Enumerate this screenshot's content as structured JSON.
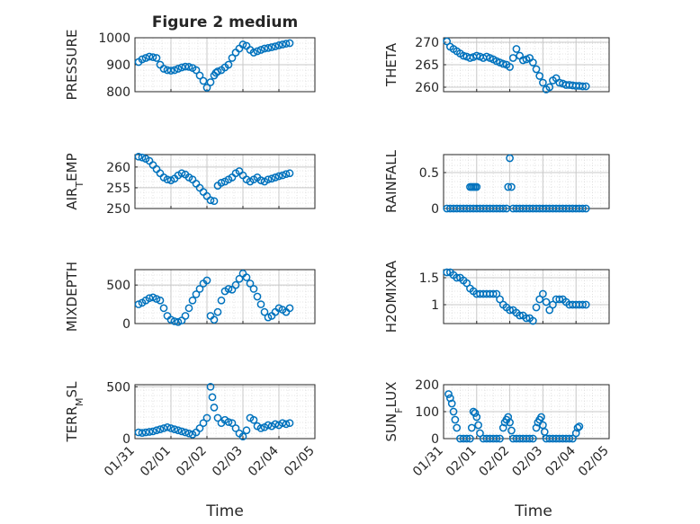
{
  "figure": {
    "title": "Figure 2 medium",
    "xlabel": "Time",
    "marker_color": "#0072bd"
  },
  "chart_data": [
    {
      "type": "scatter",
      "ylabel": "PRESSURE",
      "ylim": [
        800,
        1000
      ],
      "yticks": [
        800,
        900,
        1000
      ],
      "xticks": [
        "01/31",
        "02/01",
        "02/02",
        "02/03",
        "02/04",
        "02/05"
      ],
      "xlim": [
        0,
        5
      ],
      "grid": true,
      "series": [
        {
          "x": [
            0.1,
            0.2,
            0.3,
            0.4,
            0.5,
            0.6,
            0.7,
            0.8,
            0.9,
            1.0,
            1.1,
            1.2,
            1.3,
            1.4,
            1.5,
            1.6,
            1.7,
            1.8,
            1.9,
            2.0,
            2.1,
            2.2,
            2.25,
            2.3,
            2.4,
            2.5,
            2.6,
            2.7,
            2.8,
            2.9,
            3.0,
            3.1,
            3.2,
            3.3,
            3.4,
            3.5,
            3.6,
            3.7,
            3.8,
            3.9,
            4.0,
            4.1,
            4.2,
            4.3
          ],
          "y": [
            910,
            920,
            925,
            930,
            928,
            925,
            900,
            885,
            880,
            878,
            880,
            885,
            890,
            893,
            892,
            888,
            880,
            860,
            840,
            815,
            835,
            860,
            870,
            875,
            880,
            890,
            900,
            925,
            945,
            960,
            975,
            970,
            955,
            945,
            950,
            955,
            960,
            962,
            965,
            968,
            972,
            975,
            978,
            980
          ]
        }
      ]
    },
    {
      "type": "scatter",
      "ylabel": "THETA",
      "ylim": [
        259,
        271
      ],
      "yticks": [
        260,
        265,
        270
      ],
      "xticks": [
        "01/31",
        "02/01",
        "02/02",
        "02/03",
        "02/04",
        "02/05"
      ],
      "xlim": [
        0,
        5
      ],
      "grid": true,
      "series": [
        {
          "x": [
            0.1,
            0.2,
            0.3,
            0.4,
            0.5,
            0.6,
            0.7,
            0.8,
            0.9,
            1.0,
            1.1,
            1.2,
            1.3,
            1.4,
            1.5,
            1.6,
            1.7,
            1.8,
            1.9,
            2.0,
            2.1,
            2.2,
            2.3,
            2.4,
            2.5,
            2.6,
            2.7,
            2.8,
            2.9,
            3.0,
            3.1,
            3.2,
            3.3,
            3.4,
            3.5,
            3.6,
            3.7,
            3.8,
            3.9,
            4.0,
            4.1,
            4.2,
            4.3
          ],
          "y": [
            270.2,
            269,
            268.5,
            268,
            267.5,
            267,
            266.8,
            266.5,
            266.7,
            267,
            266.8,
            266.5,
            266.8,
            266.5,
            266.2,
            265.8,
            265.5,
            265.2,
            265,
            264.5,
            266.5,
            268.5,
            267,
            266,
            266.2,
            266.5,
            265.5,
            264,
            262.5,
            261,
            259.5,
            260,
            261.5,
            262,
            261,
            260.8,
            260.5,
            260.5,
            260.4,
            260.3,
            260.3,
            260.2,
            260.2
          ]
        }
      ]
    },
    {
      "type": "scatter",
      "ylabel": "AIR_T_EMP",
      "ylim": [
        250,
        263
      ],
      "yticks": [
        250,
        255,
        260
      ],
      "xticks": [
        "01/31",
        "02/01",
        "02/02",
        "02/03",
        "02/04",
        "02/05"
      ],
      "xlim": [
        0,
        5
      ],
      "grid": true,
      "series": [
        {
          "x": [
            0.1,
            0.2,
            0.3,
            0.4,
            0.5,
            0.6,
            0.7,
            0.8,
            0.9,
            1.0,
            1.1,
            1.2,
            1.3,
            1.4,
            1.5,
            1.6,
            1.7,
            1.8,
            1.9,
            2.0,
            2.1,
            2.2,
            2.3,
            2.4,
            2.5,
            2.6,
            2.7,
            2.8,
            2.9,
            3.0,
            3.1,
            3.2,
            3.3,
            3.4,
            3.5,
            3.6,
            3.7,
            3.8,
            3.9,
            4.0,
            4.1,
            4.2,
            4.3
          ],
          "y": [
            262.5,
            262.3,
            262,
            261.5,
            260.5,
            259.5,
            258.5,
            257.5,
            257,
            256.8,
            257.2,
            258,
            258.5,
            258.2,
            257.5,
            257,
            256,
            255,
            254,
            253,
            252,
            251.8,
            255.5,
            256.2,
            256.5,
            257,
            257.5,
            258.5,
            259,
            258,
            257,
            256.5,
            257,
            257.5,
            256.8,
            256.5,
            257,
            257.2,
            257.5,
            257.8,
            258,
            258.3,
            258.5
          ]
        }
      ]
    },
    {
      "type": "scatter",
      "ylabel": "RAINFALL",
      "ylim": [
        0,
        0.75
      ],
      "yticks": [
        0,
        0.5
      ],
      "xticks": [
        "01/31",
        "02/01",
        "02/02",
        "02/03",
        "02/04",
        "02/05"
      ],
      "xlim": [
        0,
        5
      ],
      "grid": true,
      "series": [
        {
          "x": [
            0.1,
            0.2,
            0.3,
            0.4,
            0.5,
            0.6,
            0.7,
            0.8,
            0.9,
            1.0,
            1.1,
            1.2,
            1.3,
            1.4,
            1.5,
            1.6,
            1.7,
            1.8,
            1.9,
            1.95,
            2.0,
            2.05,
            2.1,
            2.2,
            2.3,
            2.4,
            2.5,
            2.6,
            2.7,
            2.8,
            2.9,
            3.0,
            3.1,
            3.2,
            3.3,
            3.4,
            3.5,
            3.6,
            3.7,
            3.8,
            3.9,
            4.0,
            4.1,
            4.2,
            4.3,
            0.8,
            0.85,
            0.9,
            0.95,
            1.0
          ],
          "y": [
            0,
            0,
            0,
            0,
            0,
            0,
            0,
            0,
            0,
            0,
            0,
            0,
            0,
            0,
            0,
            0,
            0,
            0,
            0,
            0.3,
            0.7,
            0.3,
            0,
            0,
            0,
            0,
            0,
            0,
            0,
            0,
            0,
            0,
            0,
            0,
            0,
            0,
            0,
            0,
            0,
            0,
            0,
            0,
            0,
            0,
            0,
            0.3,
            0.3,
            0.3,
            0.3,
            0.3
          ]
        }
      ]
    },
    {
      "type": "scatter",
      "ylabel": "MIXDEPTH",
      "ylim": [
        0,
        700
      ],
      "yticks": [
        0,
        500
      ],
      "xticks": [
        "01/31",
        "02/01",
        "02/02",
        "02/03",
        "02/04",
        "02/05"
      ],
      "xlim": [
        0,
        5
      ],
      "grid": true,
      "series": [
        {
          "x": [
            0.1,
            0.2,
            0.3,
            0.4,
            0.5,
            0.6,
            0.7,
            0.8,
            0.9,
            1.0,
            1.1,
            1.2,
            1.3,
            1.4,
            1.5,
            1.6,
            1.7,
            1.8,
            1.9,
            2.0,
            2.1,
            2.2,
            2.3,
            2.4,
            2.5,
            2.6,
            2.7,
            2.8,
            2.9,
            3.0,
            3.1,
            3.2,
            3.3,
            3.4,
            3.5,
            3.6,
            3.7,
            3.8,
            3.9,
            4.0,
            4.1,
            4.2,
            4.3
          ],
          "y": [
            250,
            270,
            300,
            330,
            340,
            320,
            300,
            200,
            100,
            50,
            30,
            20,
            40,
            100,
            200,
            300,
            380,
            450,
            520,
            560,
            100,
            50,
            150,
            300,
            420,
            450,
            440,
            500,
            580,
            650,
            600,
            520,
            450,
            350,
            250,
            150,
            80,
            100,
            150,
            200,
            180,
            150,
            200
          ]
        }
      ]
    },
    {
      "type": "scatter",
      "ylabel": "H2OMIXRA",
      "ylim": [
        0.65,
        1.65
      ],
      "yticks": [
        1,
        1.5
      ],
      "xticks": [
        "01/31",
        "02/01",
        "02/02",
        "02/03",
        "02/04",
        "02/05"
      ],
      "xlim": [
        0,
        5
      ],
      "grid": true,
      "series": [
        {
          "x": [
            0.1,
            0.2,
            0.3,
            0.4,
            0.5,
            0.6,
            0.7,
            0.8,
            0.9,
            1.0,
            1.1,
            1.2,
            1.3,
            1.4,
            1.5,
            1.6,
            1.7,
            1.8,
            1.9,
            2.0,
            2.1,
            2.2,
            2.3,
            2.4,
            2.5,
            2.6,
            2.7,
            2.8,
            2.9,
            3.0,
            3.1,
            3.2,
            3.3,
            3.4,
            3.5,
            3.6,
            3.7,
            3.8,
            3.9,
            4.0,
            4.1,
            4.2,
            4.3
          ],
          "y": [
            1.6,
            1.6,
            1.55,
            1.5,
            1.5,
            1.45,
            1.4,
            1.3,
            1.25,
            1.2,
            1.2,
            1.2,
            1.2,
            1.2,
            1.2,
            1.2,
            1.1,
            1.0,
            0.95,
            0.9,
            0.9,
            0.85,
            0.8,
            0.8,
            0.75,
            0.75,
            0.7,
            0.95,
            1.1,
            1.2,
            1.05,
            0.9,
            1.0,
            1.1,
            1.1,
            1.1,
            1.05,
            1.0,
            1.0,
            1.0,
            1.0,
            1.0,
            1.0
          ]
        }
      ]
    },
    {
      "type": "scatter",
      "ylabel": "TERR_M_SL",
      "ylim": [
        0,
        520
      ],
      "yticks": [
        0,
        500
      ],
      "xticks": [
        "01/31",
        "02/01",
        "02/02",
        "02/03",
        "02/04",
        "02/05"
      ],
      "xlim": [
        0,
        5
      ],
      "grid": true,
      "series": [
        {
          "x": [
            0.1,
            0.2,
            0.3,
            0.4,
            0.5,
            0.6,
            0.7,
            0.8,
            0.9,
            1.0,
            1.1,
            1.2,
            1.3,
            1.4,
            1.5,
            1.6,
            1.7,
            1.8,
            1.9,
            2.0,
            2.1,
            2.15,
            2.2,
            2.3,
            2.4,
            2.5,
            2.6,
            2.7,
            2.8,
            2.9,
            3.0,
            3.1,
            3.2,
            3.3,
            3.4,
            3.5,
            3.6,
            3.7,
            3.8,
            3.9,
            4.0,
            4.1,
            4.2,
            4.3
          ],
          "y": [
            60,
            55,
            60,
            65,
            70,
            80,
            90,
            100,
            110,
            100,
            90,
            80,
            70,
            60,
            50,
            40,
            60,
            100,
            150,
            200,
            500,
            400,
            300,
            200,
            150,
            180,
            160,
            150,
            100,
            50,
            20,
            80,
            200,
            180,
            120,
            100,
            110,
            130,
            120,
            140,
            130,
            150,
            140,
            150
          ]
        }
      ]
    },
    {
      "type": "scatter",
      "ylabel": "SUN_F_LUX",
      "ylim": [
        0,
        200
      ],
      "yticks": [
        0,
        100,
        200
      ],
      "xticks": [
        "01/31",
        "02/01",
        "02/02",
        "02/03",
        "02/04",
        "02/05"
      ],
      "xlim": [
        0,
        5
      ],
      "grid": true,
      "series": [
        {
          "x": [
            0.15,
            0.2,
            0.25,
            0.3,
            0.35,
            0.4,
            0.5,
            0.6,
            0.7,
            0.8,
            0.85,
            0.9,
            0.95,
            1.0,
            1.05,
            1.1,
            1.2,
            1.3,
            1.4,
            1.5,
            1.6,
            1.7,
            1.8,
            1.85,
            1.9,
            1.95,
            2.0,
            2.05,
            2.1,
            2.2,
            2.3,
            2.4,
            2.5,
            2.6,
            2.7,
            2.8,
            2.85,
            2.9,
            2.95,
            3.0,
            3.05,
            3.1,
            3.2,
            3.3,
            3.4,
            3.5,
            3.6,
            3.7,
            3.8,
            3.9,
            4.0,
            4.05,
            4.1
          ],
          "y": [
            165,
            150,
            130,
            100,
            70,
            40,
            0,
            0,
            0,
            0,
            40,
            100,
            95,
            80,
            50,
            20,
            0,
            0,
            0,
            0,
            0,
            0,
            40,
            60,
            70,
            80,
            60,
            30,
            0,
            0,
            0,
            0,
            0,
            0,
            0,
            40,
            60,
            70,
            80,
            50,
            25,
            0,
            0,
            0,
            0,
            0,
            0,
            0,
            0,
            0,
            20,
            40,
            45
          ]
        }
      ]
    }
  ]
}
